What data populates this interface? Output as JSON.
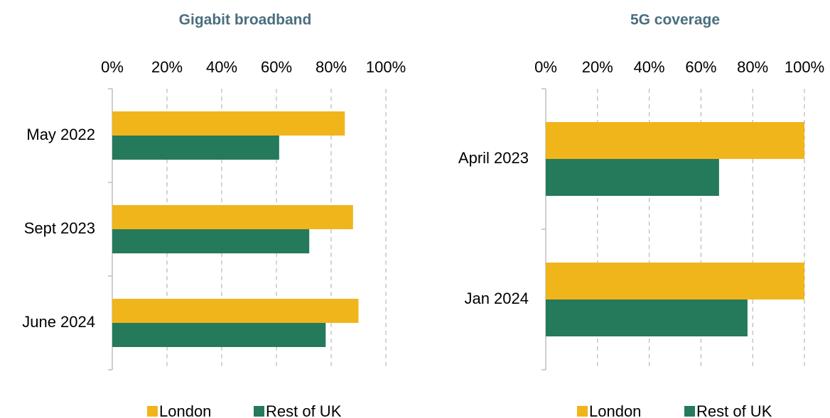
{
  "chart_data": [
    {
      "type": "bar",
      "orientation": "horizontal",
      "title": "Gigabit broadband",
      "categories": [
        "May 2022",
        "Sept 2023",
        "June 2024"
      ],
      "series": [
        {
          "name": "London",
          "color": "#f1b51c",
          "values": [
            85,
            88,
            90
          ]
        },
        {
          "name": "Rest of UK",
          "color": "#257a5b",
          "values": [
            61,
            72,
            78
          ]
        }
      ],
      "xlim": [
        0,
        100
      ],
      "xticks": [
        {
          "value": 0,
          "label": "0%"
        },
        {
          "value": 20,
          "label": "20%"
        },
        {
          "value": 40,
          "label": "40%"
        },
        {
          "value": 60,
          "label": "60%"
        },
        {
          "value": 80,
          "label": "80%"
        },
        {
          "value": 100,
          "label": "100%"
        }
      ],
      "grid": true,
      "legend": "bottom"
    },
    {
      "type": "bar",
      "orientation": "horizontal",
      "title": "5G coverage",
      "categories": [
        "April 2023",
        "Jan 2024"
      ],
      "series": [
        {
          "name": "London",
          "color": "#f1b51c",
          "values": [
            100,
            100
          ]
        },
        {
          "name": "Rest of UK",
          "color": "#257a5b",
          "values": [
            67,
            78
          ]
        }
      ],
      "xlim": [
        0,
        100
      ],
      "xticks": [
        {
          "value": 0,
          "label": "0%"
        },
        {
          "value": 20,
          "label": "20%"
        },
        {
          "value": 40,
          "label": "40%"
        },
        {
          "value": 60,
          "label": "60%"
        },
        {
          "value": 80,
          "label": "80%"
        },
        {
          "value": 100,
          "label": "100%"
        }
      ],
      "grid": true,
      "legend": "bottom"
    }
  ]
}
